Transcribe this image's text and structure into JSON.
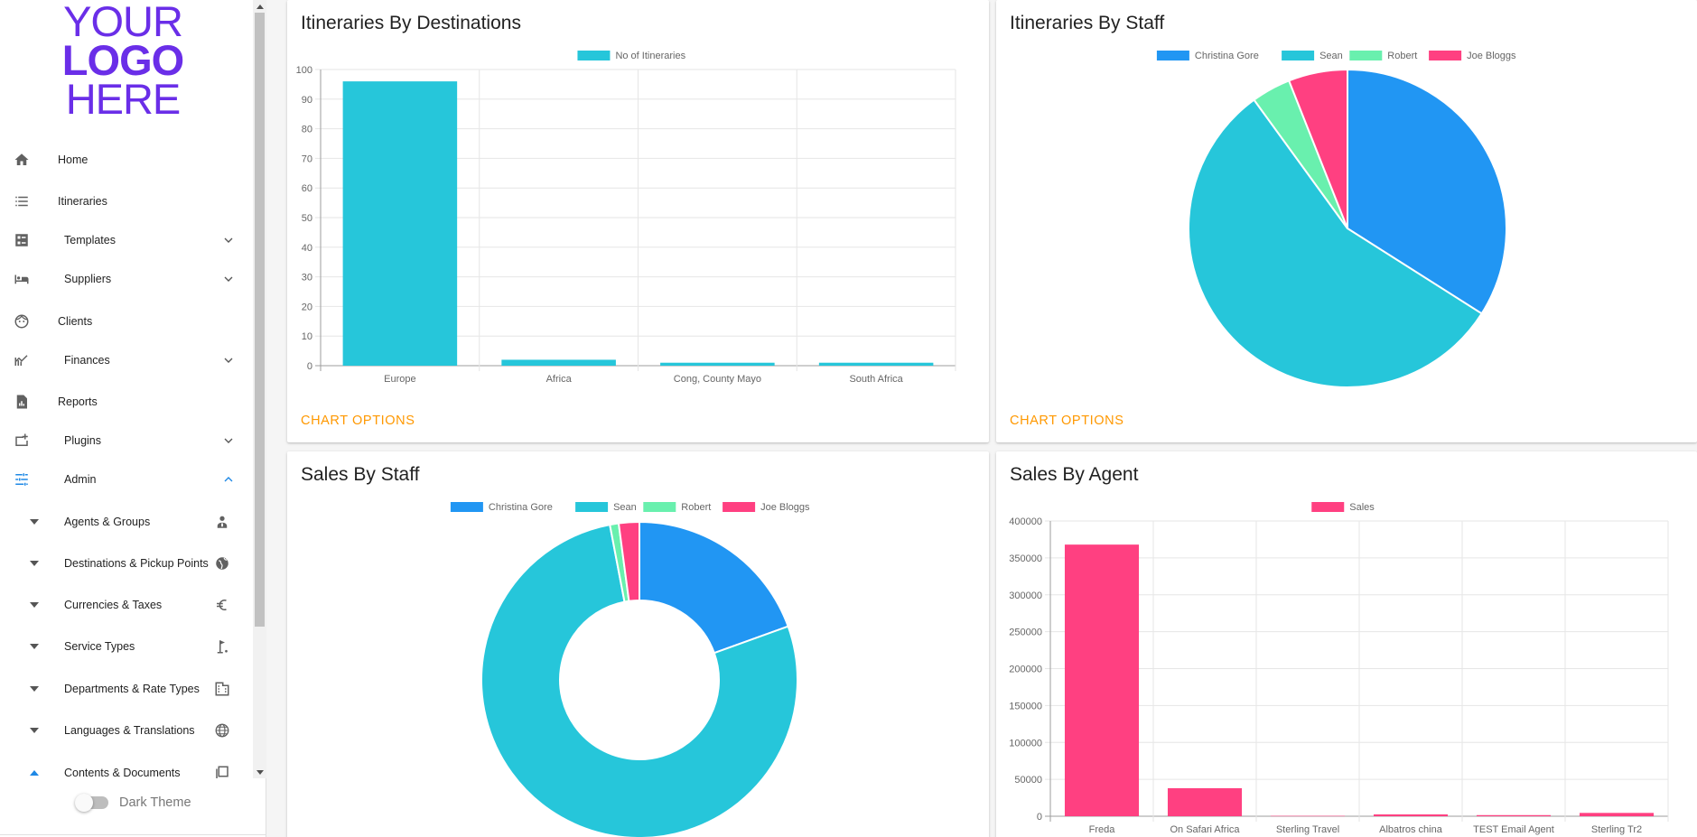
{
  "sidebar": {
    "logo": {
      "line1": "YOUR",
      "line2": "LOGO",
      "line3": "HERE"
    },
    "items": [
      {
        "label": "Home",
        "icon": "home-icon"
      },
      {
        "label": "Itineraries",
        "icon": "list-icon"
      },
      {
        "label": "Templates",
        "icon": "templates-icon",
        "expandable": true
      },
      {
        "label": "Suppliers",
        "icon": "bed-icon",
        "expandable": true
      },
      {
        "label": "Clients",
        "icon": "face-icon"
      },
      {
        "label": "Finances",
        "icon": "chart-line-icon",
        "expandable": true
      },
      {
        "label": "Reports",
        "icon": "report-icon"
      },
      {
        "label": "Plugins",
        "icon": "add-to-queue-icon",
        "expandable": true
      },
      {
        "label": "Admin",
        "icon": "tune-icon",
        "expandable": true,
        "expanded": true
      }
    ],
    "admin_items": [
      {
        "label": "Agents & Groups",
        "icon": "agent-icon"
      },
      {
        "label": "Destinations & Pickup Points",
        "icon": "globe-icon"
      },
      {
        "label": "Currencies & Taxes",
        "icon": "euro-icon"
      },
      {
        "label": "Service Types",
        "icon": "golf-icon"
      },
      {
        "label": "Departments & Rate Types",
        "icon": "building-icon"
      },
      {
        "label": "Languages & Translations",
        "icon": "language-icon"
      },
      {
        "label": "Contents & Documents",
        "icon": "documents-icon"
      }
    ],
    "dark_theme_label": "Dark Theme",
    "dark_theme_on": false
  },
  "cards": {
    "destinations": {
      "title": "Itineraries By Destinations",
      "options_label": "CHART OPTIONS"
    },
    "staff_itineraries": {
      "title": "Itineraries By Staff",
      "options_label": "CHART OPTIONS"
    },
    "sales_staff": {
      "title": "Sales By Staff"
    },
    "sales_agent": {
      "title": "Sales By Agent"
    }
  },
  "colors": {
    "accent_orange": "#ff9800",
    "logo_purple": "#6a2ee8",
    "active_blue": "#1e88e5",
    "christina": "#2196f3",
    "sean": "#26c6da",
    "robert": "#69f0ae",
    "joe": "#ff4081"
  },
  "chart_data": [
    {
      "id": "destinations",
      "type": "bar",
      "categories": [
        "Europe",
        "Africa",
        "Cong, County Mayo",
        "South Africa"
      ],
      "series": [
        {
          "name": "No of Itineraries",
          "values": [
            96,
            2,
            1,
            1
          ],
          "color": "#26c6da"
        }
      ],
      "ylim": [
        0,
        100
      ],
      "yticks": [
        0,
        10,
        20,
        30,
        40,
        50,
        60,
        70,
        80,
        90,
        100
      ],
      "grid": true,
      "legend": "top"
    },
    {
      "id": "staff_itineraries",
      "type": "pie",
      "labels": [
        "Christina Gore",
        "Sean",
        "Robert",
        "Joe Bloggs"
      ],
      "values": [
        34,
        56,
        4,
        6
      ],
      "colors": [
        "#2196f3",
        "#26c6da",
        "#69f0ae",
        "#ff4081"
      ],
      "legend": "top"
    },
    {
      "id": "sales_staff",
      "type": "pie",
      "donut": true,
      "labels": [
        "Christina Gore",
        "Sean",
        "Robert",
        "Joe Bloggs"
      ],
      "values": [
        19.5,
        77.5,
        0.9,
        2.1
      ],
      "colors": [
        "#2196f3",
        "#26c6da",
        "#69f0ae",
        "#ff4081"
      ],
      "legend": "top"
    },
    {
      "id": "sales_agent",
      "type": "bar",
      "categories": [
        "Freda",
        "On Safari Africa",
        "Sterling Travel",
        "Albatros china",
        "TEST Email Agent",
        "Sterling Tr2"
      ],
      "series": [
        {
          "name": "Sales",
          "values": [
            368000,
            38000,
            500,
            2500,
            1500,
            4500
          ],
          "color": "#ff4081"
        }
      ],
      "ylim": [
        0,
        400000
      ],
      "yticks": [
        0,
        50000,
        100000,
        150000,
        200000,
        250000,
        300000,
        350000,
        400000
      ],
      "grid": true,
      "legend": "top"
    }
  ]
}
